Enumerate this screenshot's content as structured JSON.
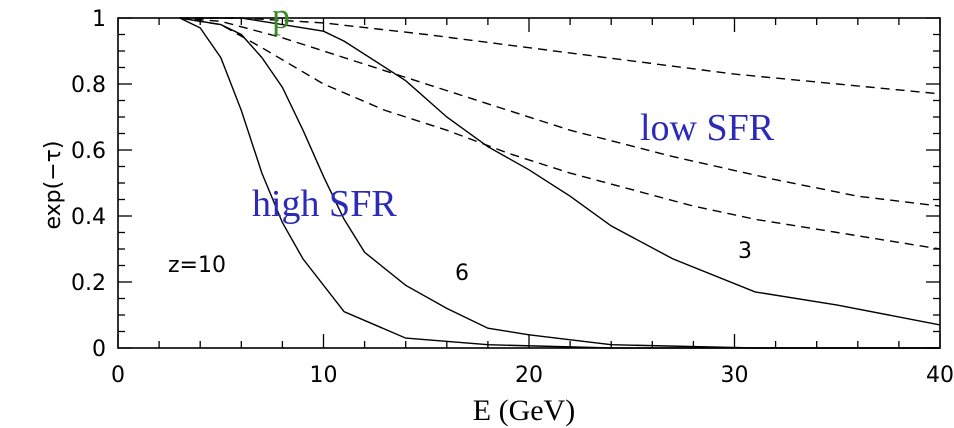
{
  "chart_data": {
    "type": "line",
    "xlabel": "E (GeV)",
    "ylabel": "exp(−τ)",
    "xlim": [
      0,
      40
    ],
    "ylim": [
      0,
      1
    ],
    "xticks": [
      "0",
      "10",
      "20",
      "30",
      "40"
    ],
    "yticks": [
      "0",
      "0.2",
      "0.4",
      "0.6",
      "0.8",
      "1"
    ],
    "grid": false,
    "series": [
      {
        "name": "z=10",
        "style": "solid",
        "x": [
          3,
          4,
          5,
          6,
          7,
          8,
          9,
          11,
          14,
          18,
          24,
          31,
          40
        ],
        "y": [
          1.0,
          0.97,
          0.88,
          0.72,
          0.53,
          0.38,
          0.27,
          0.11,
          0.03,
          0.01,
          0.0,
          0.0,
          0.0
        ]
      },
      {
        "name": "6",
        "style": "solid",
        "x": [
          3,
          5,
          6,
          7,
          8,
          9,
          10,
          11,
          12,
          14,
          16,
          18,
          20,
          24,
          31,
          40
        ],
        "y": [
          1.0,
          0.98,
          0.95,
          0.88,
          0.79,
          0.66,
          0.52,
          0.39,
          0.29,
          0.19,
          0.12,
          0.06,
          0.04,
          0.01,
          0.0,
          0.0
        ]
      },
      {
        "name": "3",
        "style": "solid",
        "x": [
          3,
          6,
          8,
          10,
          11,
          14,
          16,
          18,
          20,
          22,
          24,
          27,
          31,
          35,
          40
        ],
        "y": [
          1.0,
          1.0,
          0.98,
          0.96,
          0.93,
          0.81,
          0.7,
          0.61,
          0.54,
          0.46,
          0.37,
          0.27,
          0.17,
          0.13,
          0.07
        ]
      },
      {
        "name": "low SFR z=3",
        "style": "dashed",
        "x": [
          3,
          6,
          10,
          15,
          20,
          25,
          30,
          35,
          40
        ],
        "y": [
          1.0,
          1.0,
          0.985,
          0.95,
          0.91,
          0.87,
          0.83,
          0.8,
          0.77
        ]
      },
      {
        "name": "low SFR z=6",
        "style": "dashed",
        "x": [
          3,
          5,
          8,
          12,
          17,
          22,
          27,
          32,
          36,
          40
        ],
        "y": [
          1.0,
          0.99,
          0.94,
          0.86,
          0.76,
          0.66,
          0.58,
          0.51,
          0.46,
          0.43
        ]
      },
      {
        "name": "low SFR z=10",
        "style": "dashed",
        "x": [
          3,
          5,
          7,
          10,
          13,
          16,
          19,
          22,
          25,
          28,
          31,
          35,
          40
        ],
        "y": [
          1.0,
          0.98,
          0.91,
          0.8,
          0.72,
          0.66,
          0.59,
          0.53,
          0.48,
          0.43,
          0.39,
          0.35,
          0.3
        ]
      }
    ],
    "annotations": {
      "low_sfr": "low SFR",
      "high_sfr": "high SFR",
      "z10": "z=10",
      "z6": "6",
      "z3": "3",
      "cut_glyph": "p"
    }
  }
}
